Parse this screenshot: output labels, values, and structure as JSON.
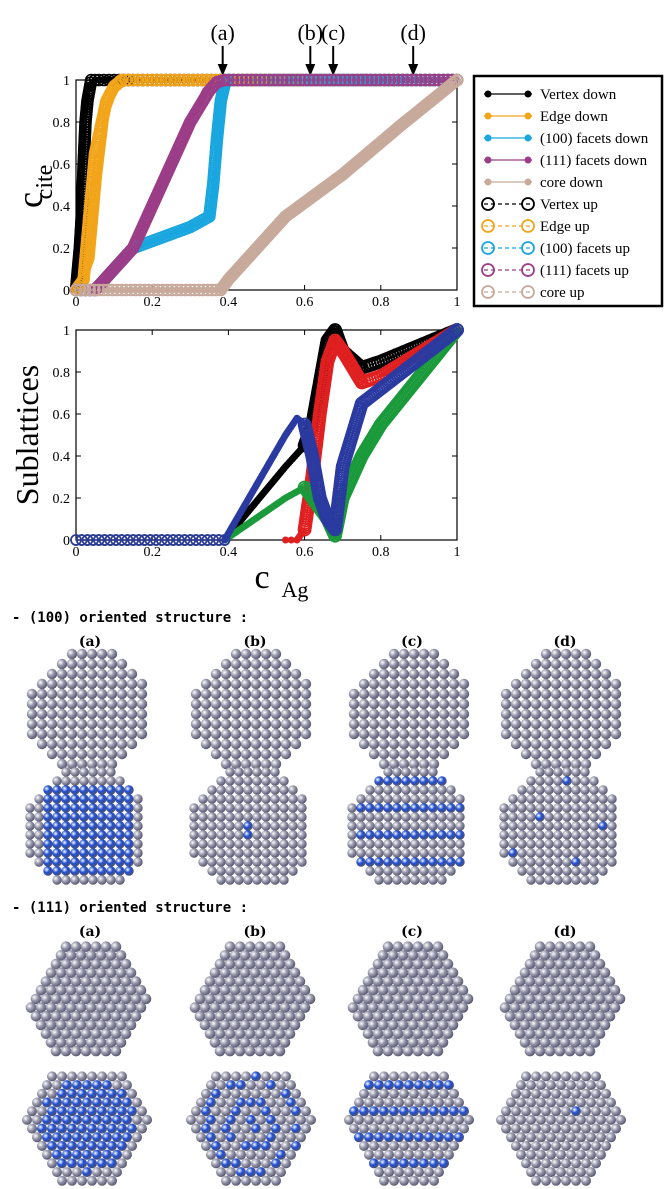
{
  "chart_data": [
    {
      "type": "line",
      "xlabel": "",
      "ylabel": "c",
      "ylabel_sub": "cite",
      "xlim": [
        0,
        1
      ],
      "ylim": [
        0,
        1
      ],
      "xticks": [
        "0",
        "0.2",
        "0.4",
        "0.6",
        "0.8",
        "1"
      ],
      "yticks": [
        "0",
        "0.2",
        "0.4",
        "0.6",
        "0.8",
        "1"
      ],
      "grid": false,
      "legend_position": "right-outside",
      "annotations": [
        {
          "label": "(a)",
          "x": 0.385
        },
        {
          "label": "(b)",
          "x": 0.615
        },
        {
          "label": "(c)",
          "x": 0.675
        },
        {
          "label": "(d)",
          "x": 0.885
        }
      ],
      "series": [
        {
          "name": "Vertex down",
          "color": "#000000",
          "marker": "filled",
          "x": [
            0.0,
            0.01,
            0.02,
            0.03,
            0.04,
            0.05,
            0.06,
            0.08,
            0.1,
            0.2,
            0.4,
            1.0
          ],
          "y": [
            0.0,
            0.4,
            0.8,
            0.95,
            0.98,
            1.0,
            1.0,
            1.0,
            1.0,
            1.0,
            1.0,
            1.0
          ]
        },
        {
          "name": "Edge down",
          "color": "#f2a51a",
          "marker": "filled",
          "x": [
            0.0,
            0.02,
            0.04,
            0.06,
            0.08,
            0.1,
            0.12,
            0.15,
            0.2,
            0.4,
            1.0
          ],
          "y": [
            0.0,
            0.05,
            0.15,
            0.55,
            0.85,
            0.95,
            0.98,
            1.0,
            1.0,
            1.0,
            1.0
          ]
        },
        {
          "name": "(100) facets down",
          "color": "#1aa7e0",
          "marker": "filled",
          "x": [
            0.0,
            0.05,
            0.1,
            0.15,
            0.3,
            0.35,
            0.36,
            0.37,
            0.375,
            0.38,
            0.39,
            0.4,
            1.0
          ],
          "y": [
            0.0,
            0.0,
            0.1,
            0.2,
            0.3,
            0.35,
            0.45,
            0.65,
            0.85,
            0.95,
            1.0,
            1.0,
            1.0
          ]
        },
        {
          "name": "(111) facets down",
          "color": "#9c3d88",
          "marker": "filled",
          "x": [
            0.0,
            0.05,
            0.1,
            0.15,
            0.3,
            0.34,
            0.36,
            0.38,
            0.4,
            0.55,
            0.7,
            1.0
          ],
          "y": [
            0.0,
            0.0,
            0.1,
            0.2,
            0.8,
            0.95,
            0.98,
            1.0,
            1.0,
            1.0,
            1.0,
            1.0
          ]
        },
        {
          "name": "core down",
          "color": "#c8aa9c",
          "marker": "filled",
          "x": [
            0.0,
            0.3,
            0.38,
            0.4,
            0.55,
            0.7,
            0.85,
            1.0
          ],
          "y": [
            0.0,
            0.0,
            0.0,
            0.05,
            0.35,
            0.55,
            0.78,
            1.0
          ]
        },
        {
          "name": "Vertex up",
          "color": "#000000",
          "marker": "open",
          "x": [
            0.0,
            0.005,
            0.01,
            0.015,
            0.02,
            0.025,
            0.03,
            0.035,
            0.04,
            0.06,
            0.1,
            0.2,
            1.0
          ],
          "y": [
            0.0,
            0.1,
            0.2,
            0.35,
            0.6,
            0.8,
            0.9,
            0.95,
            1.0,
            1.0,
            1.0,
            1.0,
            1.0
          ]
        },
        {
          "name": "Edge up",
          "color": "#f2a51a",
          "marker": "open",
          "x": [
            0.0,
            0.02,
            0.05,
            0.08,
            0.1,
            0.12,
            0.15,
            0.2,
            1.0
          ],
          "y": [
            0.0,
            0.05,
            0.65,
            0.9,
            0.97,
            1.0,
            1.0,
            1.0,
            1.0
          ]
        },
        {
          "name": "(100) facets up",
          "color": "#1aa7e0",
          "marker": "open",
          "x": [
            0.0,
            0.05,
            0.1,
            0.15,
            0.3,
            0.35,
            0.36,
            0.37,
            0.38,
            0.39,
            0.4,
            1.0
          ],
          "y": [
            0.0,
            0.0,
            0.1,
            0.2,
            0.3,
            0.35,
            0.5,
            0.72,
            0.9,
            0.98,
            1.0,
            1.0
          ]
        },
        {
          "name": "(111) facets up",
          "color": "#9c3d88",
          "marker": "open",
          "x": [
            0.0,
            0.05,
            0.1,
            0.15,
            0.3,
            0.35,
            0.37,
            0.39,
            0.4,
            0.6,
            0.8,
            1.0
          ],
          "y": [
            0.0,
            0.0,
            0.1,
            0.2,
            0.8,
            0.95,
            0.99,
            1.0,
            1.0,
            1.0,
            1.0,
            1.0
          ]
        },
        {
          "name": "core up",
          "color": "#c8aa9c",
          "marker": "open",
          "x": [
            0.0,
            0.3,
            0.38,
            0.4,
            0.55,
            0.7,
            0.85,
            1.0
          ],
          "y": [
            0.0,
            0.0,
            0.0,
            0.05,
            0.35,
            0.55,
            0.78,
            1.0
          ]
        }
      ]
    },
    {
      "type": "line",
      "xlabel": "c",
      "xlabel_sub": "Ag",
      "ylabel": "Sublattices",
      "xlim": [
        0,
        1
      ],
      "ylim": [
        0,
        1
      ],
      "xticks": [
        "0",
        "0.2",
        "0.4",
        "0.6",
        "0.8",
        "1"
      ],
      "yticks": [
        "0",
        "0.2",
        "0.4",
        "0.6",
        "0.8",
        "1"
      ],
      "grid": false,
      "series": [
        {
          "color": "#000000",
          "dashed": true,
          "x": [
            0.0,
            0.15,
            0.3,
            0.39
          ],
          "y": [
            0,
            0,
            0,
            0
          ],
          "x2": [
            0.39,
            0.55,
            0.6,
            0.62,
            0.64,
            0.66,
            0.68,
            0.7,
            0.75,
            0.8,
            1.0
          ],
          "y2": [
            0.0,
            0.35,
            0.45,
            0.55,
            0.75,
            0.95,
            1.0,
            0.9,
            0.82,
            0.85,
            1.0
          ]
        },
        {
          "color": "#e02020",
          "dashed": false,
          "x": [
            0.0,
            0.3,
            0.39
          ],
          "y": [
            0,
            0,
            0
          ],
          "x2": [
            0.55,
            0.58,
            0.6,
            0.62,
            0.64,
            0.66,
            0.68,
            0.7,
            0.75,
            0.8,
            1.0
          ],
          "y2": [
            0.0,
            0.0,
            0.05,
            0.3,
            0.6,
            0.85,
            0.95,
            0.9,
            0.75,
            0.78,
            1.0
          ]
        },
        {
          "color": "#1a9a3a",
          "dashed": true,
          "x": [
            0.0,
            0.3,
            0.39
          ],
          "y": [
            0,
            0,
            0
          ],
          "x2": [
            0.39,
            0.55,
            0.6,
            0.62,
            0.64,
            0.66,
            0.68,
            0.7,
            0.75,
            0.8,
            1.0
          ],
          "y2": [
            0.0,
            0.2,
            0.25,
            0.2,
            0.15,
            0.1,
            0.02,
            0.2,
            0.4,
            0.55,
            1.0
          ]
        },
        {
          "color": "#2a3aa0",
          "dashed": false,
          "x": [
            0.0,
            0.3,
            0.39
          ],
          "y": [
            0,
            0,
            0
          ],
          "x2": [
            0.39,
            0.55,
            0.58,
            0.6,
            0.62,
            0.64,
            0.66,
            0.68,
            0.7,
            0.75,
            0.8,
            1.0
          ],
          "y2": [
            0.0,
            0.5,
            0.58,
            0.55,
            0.4,
            0.2,
            0.1,
            0.05,
            0.35,
            0.65,
            0.72,
            1.0
          ]
        }
      ]
    }
  ],
  "sections": [
    {
      "title": "- (100) oriented structure :",
      "labels": [
        "(a)",
        "(b)",
        "(c)",
        "(d)"
      ]
    },
    {
      "title": "- (111) oriented structure :",
      "labels": [
        "(a)",
        "(b)",
        "(c)",
        "(d)"
      ]
    }
  ],
  "colors": {
    "atom": "#9a9aae",
    "atom_highlight": "#c8c8d8",
    "ag": "#1f4fd6"
  }
}
